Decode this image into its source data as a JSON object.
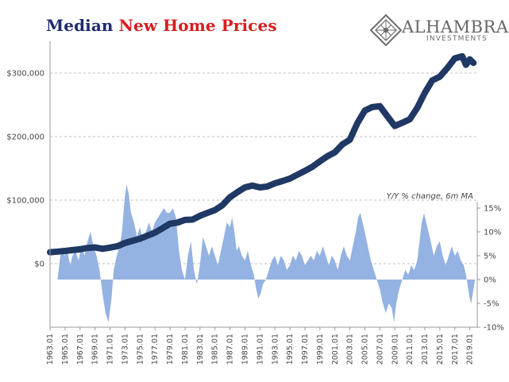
{
  "header": {
    "title_part1": "Median ",
    "title_part2": "New Home Prices"
  },
  "logo": {
    "name": "ALHAMBRA",
    "subtitle": "INVESTMENTS"
  },
  "colors": {
    "price_series": "#1f3864",
    "yoy_area": "#8eaee0",
    "title_blue": "#1f2b6f",
    "title_red": "#d71e1e",
    "gridline": "#bcbcbc",
    "axis": "#9a9a9a"
  },
  "chart_data": {
    "type": "line+area",
    "title": "Median New Home Prices",
    "left_axis": {
      "ticks": [
        {
          "value": 0,
          "label": "$0"
        },
        {
          "value": 100000,
          "label": "$100,000"
        },
        {
          "value": 200000,
          "label": "$200,000"
        },
        {
          "value": 300000,
          "label": "$300,000"
        }
      ],
      "range": [
        -100000,
        350000
      ]
    },
    "right_axis": {
      "title": "Y/Y % change, 6m MA",
      "ticks": [
        {
          "value": -10,
          "label": "-10%"
        },
        {
          "value": -5,
          "label": "-5%"
        },
        {
          "value": 0,
          "label": "0%"
        },
        {
          "value": 5,
          "label": "5%"
        },
        {
          "value": 10,
          "label": "10%"
        },
        {
          "value": 15,
          "label": "15%"
        }
      ],
      "range": [
        -10,
        15
      ]
    },
    "x_axis": {
      "range": [
        1963,
        2020
      ],
      "ticks": [
        "1963.01",
        "1965.01",
        "1967.01",
        "1969.01",
        "1971.01",
        "1973.01",
        "1975.01",
        "1977.01",
        "1979.01",
        "1981.01",
        "1983.01",
        "1985.01",
        "1987.01",
        "1989.01",
        "1991.01",
        "1993.01",
        "1995.01",
        "1997.01",
        "1999.01",
        "2001.01",
        "2003.01",
        "2005.01",
        "2007.01",
        "2009.01",
        "2011.01",
        "2013.01",
        "2015.01",
        "2017.01",
        "2019.01"
      ]
    },
    "grid": true,
    "series": [
      {
        "name": "Median new home price",
        "type": "line",
        "axis": "left",
        "points": [
          [
            1963.0,
            18000
          ],
          [
            1964.0,
            19000
          ],
          [
            1965.0,
            20000
          ],
          [
            1966.0,
            21400
          ],
          [
            1967.0,
            22700
          ],
          [
            1968.0,
            24700
          ],
          [
            1969.0,
            25600
          ],
          [
            1970.0,
            23400
          ],
          [
            1971.0,
            25200
          ],
          [
            1972.0,
            27600
          ],
          [
            1973.0,
            32500
          ],
          [
            1974.0,
            35900
          ],
          [
            1975.0,
            39300
          ],
          [
            1976.0,
            44200
          ],
          [
            1977.0,
            48800
          ],
          [
            1978.0,
            55700
          ],
          [
            1979.0,
            62900
          ],
          [
            1980.0,
            64600
          ],
          [
            1981.0,
            68900
          ],
          [
            1982.0,
            69300
          ],
          [
            1983.0,
            75300
          ],
          [
            1984.0,
            79900
          ],
          [
            1985.0,
            84300
          ],
          [
            1986.0,
            92000
          ],
          [
            1987.0,
            104500
          ],
          [
            1988.0,
            112500
          ],
          [
            1989.0,
            120000
          ],
          [
            1990.0,
            122900
          ],
          [
            1991.0,
            120000
          ],
          [
            1992.0,
            121500
          ],
          [
            1993.0,
            126500
          ],
          [
            1994.0,
            130000
          ],
          [
            1995.0,
            133900
          ],
          [
            1996.0,
            140000
          ],
          [
            1997.0,
            146000
          ],
          [
            1998.0,
            152500
          ],
          [
            1999.0,
            161000
          ],
          [
            2000.0,
            169000
          ],
          [
            2001.0,
            175200
          ],
          [
            2002.0,
            187600
          ],
          [
            2003.0,
            195000
          ],
          [
            2004.0,
            221000
          ],
          [
            2005.0,
            240900
          ],
          [
            2006.0,
            246500
          ],
          [
            2007.0,
            247900
          ],
          [
            2008.0,
            232100
          ],
          [
            2009.0,
            216700
          ],
          [
            2010.0,
            221800
          ],
          [
            2011.0,
            227200
          ],
          [
            2012.0,
            245200
          ],
          [
            2013.0,
            268900
          ],
          [
            2014.0,
            288500
          ],
          [
            2015.0,
            294200
          ],
          [
            2016.0,
            307800
          ],
          [
            2017.0,
            323100
          ],
          [
            2018.0,
            326400
          ],
          [
            2018.5,
            313000
          ],
          [
            2019.0,
            321600
          ],
          [
            2019.5,
            316000
          ]
        ]
      },
      {
        "name": "Y/Y % change, 6m MA",
        "type": "area",
        "axis": "right",
        "points": [
          [
            1964.0,
            0
          ],
          [
            1964.3,
            4
          ],
          [
            1964.6,
            7
          ],
          [
            1964.9,
            5
          ],
          [
            1965.3,
            6
          ],
          [
            1965.7,
            3
          ],
          [
            1966.0,
            5
          ],
          [
            1966.4,
            6
          ],
          [
            1966.8,
            4
          ],
          [
            1967.2,
            7
          ],
          [
            1967.6,
            5
          ],
          [
            1968.0,
            8
          ],
          [
            1968.4,
            10
          ],
          [
            1968.8,
            7
          ],
          [
            1969.2,
            5
          ],
          [
            1969.6,
            2
          ],
          [
            1970.0,
            -3
          ],
          [
            1970.4,
            -7
          ],
          [
            1970.8,
            -9
          ],
          [
            1971.2,
            -4
          ],
          [
            1971.5,
            2
          ],
          [
            1971.9,
            5
          ],
          [
            1972.3,
            7
          ],
          [
            1972.6,
            10
          ],
          [
            1972.9,
            16
          ],
          [
            1973.2,
            20
          ],
          [
            1973.5,
            18
          ],
          [
            1973.8,
            14
          ],
          [
            1974.2,
            12
          ],
          [
            1974.6,
            9
          ],
          [
            1975.0,
            11
          ],
          [
            1975.4,
            8
          ],
          [
            1975.8,
            10
          ],
          [
            1976.2,
            12
          ],
          [
            1976.6,
            10
          ],
          [
            1977.0,
            12
          ],
          [
            1977.4,
            13
          ],
          [
            1977.8,
            14
          ],
          [
            1978.2,
            15
          ],
          [
            1978.6,
            14
          ],
          [
            1979.0,
            14
          ],
          [
            1979.4,
            15
          ],
          [
            1979.8,
            13
          ],
          [
            1980.2,
            6
          ],
          [
            1980.6,
            2
          ],
          [
            1981.0,
            0
          ],
          [
            1981.4,
            5
          ],
          [
            1981.8,
            8
          ],
          [
            1982.2,
            2
          ],
          [
            1982.6,
            -1
          ],
          [
            1983.0,
            3
          ],
          [
            1983.4,
            9
          ],
          [
            1983.8,
            7
          ],
          [
            1984.2,
            5
          ],
          [
            1984.6,
            7
          ],
          [
            1985.0,
            5
          ],
          [
            1985.4,
            3
          ],
          [
            1985.8,
            6
          ],
          [
            1986.2,
            9
          ],
          [
            1986.6,
            12
          ],
          [
            1987.0,
            11
          ],
          [
            1987.3,
            13
          ],
          [
            1987.6,
            10
          ],
          [
            1987.9,
            6
          ],
          [
            1988.2,
            7
          ],
          [
            1988.6,
            5
          ],
          [
            1989.0,
            4
          ],
          [
            1989.4,
            6
          ],
          [
            1989.8,
            3
          ],
          [
            1990.2,
            1
          ],
          [
            1990.5,
            -2
          ],
          [
            1990.8,
            -4
          ],
          [
            1991.1,
            -3
          ],
          [
            1991.4,
            -1
          ],
          [
            1991.8,
            0
          ],
          [
            1992.2,
            2
          ],
          [
            1992.6,
            4
          ],
          [
            1993.0,
            5
          ],
          [
            1993.4,
            3
          ],
          [
            1993.8,
            5
          ],
          [
            1994.2,
            4
          ],
          [
            1994.6,
            2
          ],
          [
            1995.0,
            3
          ],
          [
            1995.4,
            5
          ],
          [
            1995.8,
            4
          ],
          [
            1996.2,
            6
          ],
          [
            1996.6,
            5
          ],
          [
            1997.0,
            3
          ],
          [
            1997.4,
            4
          ],
          [
            1997.8,
            5
          ],
          [
            1998.2,
            4
          ],
          [
            1998.6,
            6
          ],
          [
            1999.0,
            5
          ],
          [
            1999.4,
            7
          ],
          [
            1999.8,
            5
          ],
          [
            2000.2,
            3
          ],
          [
            2000.6,
            5
          ],
          [
            2001.0,
            4
          ],
          [
            2001.4,
            2
          ],
          [
            2001.8,
            5
          ],
          [
            2002.2,
            7
          ],
          [
            2002.6,
            5
          ],
          [
            2003.0,
            4
          ],
          [
            2003.4,
            7
          ],
          [
            2003.8,
            10
          ],
          [
            2004.1,
            13
          ],
          [
            2004.4,
            14
          ],
          [
            2004.7,
            12
          ],
          [
            2005.0,
            10
          ],
          [
            2005.4,
            7
          ],
          [
            2005.8,
            4
          ],
          [
            2006.2,
            2
          ],
          [
            2006.6,
            0
          ],
          [
            2007.0,
            -2
          ],
          [
            2007.4,
            -5
          ],
          [
            2007.8,
            -7
          ],
          [
            2008.2,
            -5
          ],
          [
            2008.6,
            -6
          ],
          [
            2008.9,
            -9
          ],
          [
            2009.2,
            -5
          ],
          [
            2009.6,
            -2
          ],
          [
            2010.0,
            0
          ],
          [
            2010.4,
            2
          ],
          [
            2010.8,
            1
          ],
          [
            2011.2,
            3
          ],
          [
            2011.6,
            2
          ],
          [
            2012.0,
            4
          ],
          [
            2012.3,
            8
          ],
          [
            2012.6,
            12
          ],
          [
            2012.9,
            14
          ],
          [
            2013.2,
            12
          ],
          [
            2013.5,
            10
          ],
          [
            2013.8,
            8
          ],
          [
            2014.2,
            5
          ],
          [
            2014.6,
            7
          ],
          [
            2015.0,
            8
          ],
          [
            2015.4,
            5
          ],
          [
            2015.8,
            3
          ],
          [
            2016.2,
            5
          ],
          [
            2016.6,
            7
          ],
          [
            2017.0,
            5
          ],
          [
            2017.4,
            6
          ],
          [
            2017.8,
            4
          ],
          [
            2018.2,
            3
          ],
          [
            2018.5,
            1
          ],
          [
            2018.8,
            -2
          ],
          [
            2019.0,
            -4
          ],
          [
            2019.2,
            -5
          ],
          [
            2019.5,
            -2
          ],
          [
            2019.7,
            0
          ]
        ]
      }
    ]
  }
}
